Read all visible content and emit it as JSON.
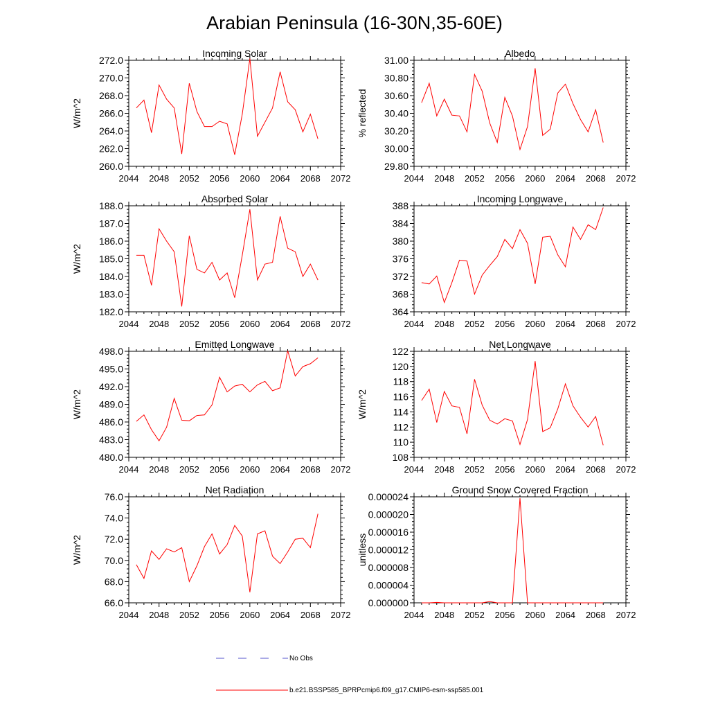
{
  "title": "Arabian Peninsula (16-30N,35-60E)",
  "legend": {
    "obs_label": "No Obs",
    "obs_color": "#5555cc",
    "model_label": "b.e21.BSSP585_BPRPcmip6.f09_g17.CMIP6-esm-ssp585.001",
    "model_color": "#ff0000"
  },
  "chart_data": [
    {
      "type": "line",
      "title": "Incoming Solar",
      "ylabel": "W/m^2",
      "xlim": [
        2044,
        2072
      ],
      "ylim": [
        260.0,
        272.0
      ],
      "xticks": [
        2044,
        2048,
        2052,
        2056,
        2060,
        2064,
        2068,
        2072
      ],
      "yticks": [
        "260.0",
        "262.0",
        "264.0",
        "266.0",
        "268.0",
        "270.0",
        "272.0"
      ],
      "series": [
        {
          "color": "#ff0000",
          "x": [
            2045,
            2046,
            2047,
            2048,
            2049,
            2050,
            2051,
            2052,
            2053,
            2054,
            2055,
            2056,
            2057,
            2058,
            2059,
            2060,
            2061,
            2062,
            2063,
            2064,
            2065,
            2066,
            2067,
            2068,
            2069
          ],
          "values": [
            266.6,
            267.5,
            263.8,
            269.2,
            267.6,
            266.6,
            261.4,
            269.4,
            266.2,
            264.5,
            264.5,
            265.1,
            264.8,
            261.3,
            265.9,
            272.2,
            263.4,
            265.0,
            266.6,
            270.7,
            267.3,
            266.4,
            263.9,
            265.9,
            263.1
          ]
        }
      ]
    },
    {
      "type": "line",
      "title": "Albedo",
      "ylabel": "% reflected",
      "xlim": [
        2044,
        2072
      ],
      "ylim": [
        29.8,
        31.0
      ],
      "xticks": [
        2044,
        2048,
        2052,
        2056,
        2060,
        2064,
        2068,
        2072
      ],
      "yticks": [
        "29.80",
        "30.00",
        "30.20",
        "30.40",
        "30.60",
        "30.80",
        "31.00"
      ],
      "series": [
        {
          "color": "#ff0000",
          "x": [
            2045,
            2046,
            2047,
            2048,
            2049,
            2050,
            2051,
            2052,
            2053,
            2054,
            2055,
            2056,
            2057,
            2058,
            2059,
            2060,
            2061,
            2062,
            2063,
            2064,
            2065,
            2066,
            2067,
            2068,
            2069
          ],
          "values": [
            30.52,
            30.74,
            30.37,
            30.56,
            30.38,
            30.37,
            30.19,
            30.84,
            30.65,
            30.29,
            30.07,
            30.58,
            30.37,
            29.99,
            30.25,
            30.91,
            30.15,
            30.22,
            30.63,
            30.73,
            30.51,
            30.33,
            30.19,
            30.44,
            30.07
          ]
        }
      ]
    },
    {
      "type": "line",
      "title": "Absorbed Solar",
      "ylabel": "W/m^2",
      "xlim": [
        2044,
        2072
      ],
      "ylim": [
        182.0,
        188.0
      ],
      "xticks": [
        2044,
        2048,
        2052,
        2056,
        2060,
        2064,
        2068,
        2072
      ],
      "yticks": [
        "182.0",
        "183.0",
        "184.0",
        "185.0",
        "186.0",
        "187.0",
        "188.0"
      ],
      "series": [
        {
          "color": "#ff0000",
          "x": [
            2045,
            2046,
            2047,
            2048,
            2049,
            2050,
            2051,
            2052,
            2053,
            2054,
            2055,
            2056,
            2057,
            2058,
            2059,
            2060,
            2061,
            2062,
            2063,
            2064,
            2065,
            2066,
            2067,
            2068,
            2069
          ],
          "values": [
            185.2,
            185.2,
            183.5,
            186.7,
            186.0,
            185.4,
            182.3,
            186.3,
            184.4,
            184.2,
            184.8,
            183.8,
            184.2,
            182.8,
            185.2,
            187.8,
            183.8,
            184.7,
            184.8,
            187.4,
            185.6,
            185.4,
            184.0,
            184.7,
            183.8
          ]
        }
      ]
    },
    {
      "type": "line",
      "title": "Incoming Longwave",
      "ylabel": "",
      "xlim": [
        2044,
        2072
      ],
      "ylim": [
        364,
        388
      ],
      "xticks": [
        2044,
        2048,
        2052,
        2056,
        2060,
        2064,
        2068,
        2072
      ],
      "yticks": [
        "364",
        "368",
        "372",
        "376",
        "380",
        "384",
        "388"
      ],
      "series": [
        {
          "color": "#ff0000",
          "x": [
            2045,
            2046,
            2047,
            2048,
            2049,
            2050,
            2051,
            2052,
            2053,
            2054,
            2055,
            2056,
            2057,
            2058,
            2059,
            2060,
            2061,
            2062,
            2063,
            2064,
            2065,
            2066,
            2067,
            2068,
            2069
          ],
          "values": [
            370.6,
            370.3,
            372.1,
            366.1,
            370.6,
            375.7,
            375.5,
            368.0,
            372.3,
            374.5,
            376.5,
            380.4,
            378.3,
            382.6,
            379.5,
            370.3,
            380.9,
            381.1,
            376.9,
            374.2,
            383.2,
            380.4,
            383.7,
            382.6,
            387.6
          ]
        }
      ]
    },
    {
      "type": "line",
      "title": "Emitted Longwave",
      "ylabel": "W/m^2",
      "xlim": [
        2044,
        2072
      ],
      "ylim": [
        480.0,
        498.0
      ],
      "xticks": [
        2044,
        2048,
        2052,
        2056,
        2060,
        2064,
        2068,
        2072
      ],
      "yticks": [
        "480.0",
        "483.0",
        "486.0",
        "489.0",
        "492.0",
        "495.0",
        "498.0"
      ],
      "series": [
        {
          "color": "#ff0000",
          "x": [
            2045,
            2046,
            2047,
            2048,
            2049,
            2050,
            2051,
            2052,
            2053,
            2054,
            2055,
            2056,
            2057,
            2058,
            2059,
            2060,
            2061,
            2062,
            2063,
            2064,
            2065,
            2066,
            2067,
            2068,
            2069
          ],
          "values": [
            486.1,
            487.2,
            484.7,
            482.8,
            485.1,
            490.0,
            486.3,
            486.2,
            487.1,
            487.2,
            488.9,
            493.6,
            491.1,
            492.1,
            492.4,
            491.1,
            492.3,
            492.9,
            491.3,
            491.8,
            498.1,
            493.8,
            495.4,
            495.9,
            496.9
          ]
        }
      ]
    },
    {
      "type": "line",
      "title": "Net Longwave",
      "ylabel": "W/m^2",
      "xlim": [
        2044,
        2072
      ],
      "ylim": [
        108,
        122
      ],
      "xticks": [
        2044,
        2048,
        2052,
        2056,
        2060,
        2064,
        2068,
        2072
      ],
      "yticks": [
        "108",
        "110",
        "112",
        "114",
        "116",
        "118",
        "120",
        "122"
      ],
      "series": [
        {
          "color": "#ff0000",
          "x": [
            2045,
            2046,
            2047,
            2048,
            2049,
            2050,
            2051,
            2052,
            2053,
            2054,
            2055,
            2056,
            2057,
            2058,
            2059,
            2060,
            2061,
            2062,
            2063,
            2064,
            2065,
            2066,
            2067,
            2068,
            2069
          ],
          "values": [
            115.5,
            117.0,
            112.6,
            116.7,
            114.8,
            114.6,
            111.1,
            118.3,
            114.9,
            112.9,
            112.4,
            113.1,
            112.8,
            109.7,
            113.0,
            120.7,
            111.4,
            111.9,
            114.4,
            117.7,
            114.8,
            113.3,
            112.0,
            113.4,
            109.6
          ]
        }
      ]
    },
    {
      "type": "line",
      "title": "Net Radiation",
      "ylabel": "W/m^2",
      "xlim": [
        2044,
        2072
      ],
      "ylim": [
        66.0,
        76.0
      ],
      "xticks": [
        2044,
        2048,
        2052,
        2056,
        2060,
        2064,
        2068,
        2072
      ],
      "yticks": [
        "66.0",
        "68.0",
        "70.0",
        "72.0",
        "74.0",
        "76.0"
      ],
      "series": [
        {
          "color": "#ff0000",
          "x": [
            2045,
            2046,
            2047,
            2048,
            2049,
            2050,
            2051,
            2052,
            2053,
            2054,
            2055,
            2056,
            2057,
            2058,
            2059,
            2060,
            2061,
            2062,
            2063,
            2064,
            2065,
            2066,
            2067,
            2068,
            2069
          ],
          "values": [
            69.6,
            68.3,
            70.9,
            70.1,
            71.1,
            70.8,
            71.2,
            68.0,
            69.5,
            71.3,
            72.5,
            70.6,
            71.5,
            73.3,
            72.3,
            67.0,
            72.5,
            72.8,
            70.4,
            69.7,
            70.8,
            72.0,
            72.1,
            71.2,
            74.4
          ]
        }
      ]
    },
    {
      "type": "line",
      "title": "Ground Snow Covered Fraction",
      "ylabel": "unitless",
      "xlim": [
        2044,
        2072
      ],
      "ylim": [
        0,
        2.4e-05
      ],
      "xticks": [
        2044,
        2048,
        2052,
        2056,
        2060,
        2064,
        2068,
        2072
      ],
      "yticks": [
        "0.000000",
        "0.000004",
        "0.000008",
        "0.000012",
        "0.000016",
        "0.000020",
        "0.000024"
      ],
      "series": [
        {
          "color": "#ff0000",
          "x": [
            2045,
            2046,
            2047,
            2048,
            2049,
            2050,
            2051,
            2052,
            2053,
            2054,
            2055,
            2056,
            2057,
            2058,
            2059,
            2060,
            2061,
            2062,
            2063,
            2064,
            2065,
            2066,
            2067,
            2068,
            2069
          ],
          "values": [
            0,
            0,
            1e-07,
            0,
            0,
            0,
            0,
            0,
            0,
            3e-07,
            0,
            0,
            0,
            2.37e-05,
            0,
            0,
            0,
            0,
            0,
            0,
            0,
            0,
            0,
            0,
            0
          ]
        }
      ]
    }
  ]
}
